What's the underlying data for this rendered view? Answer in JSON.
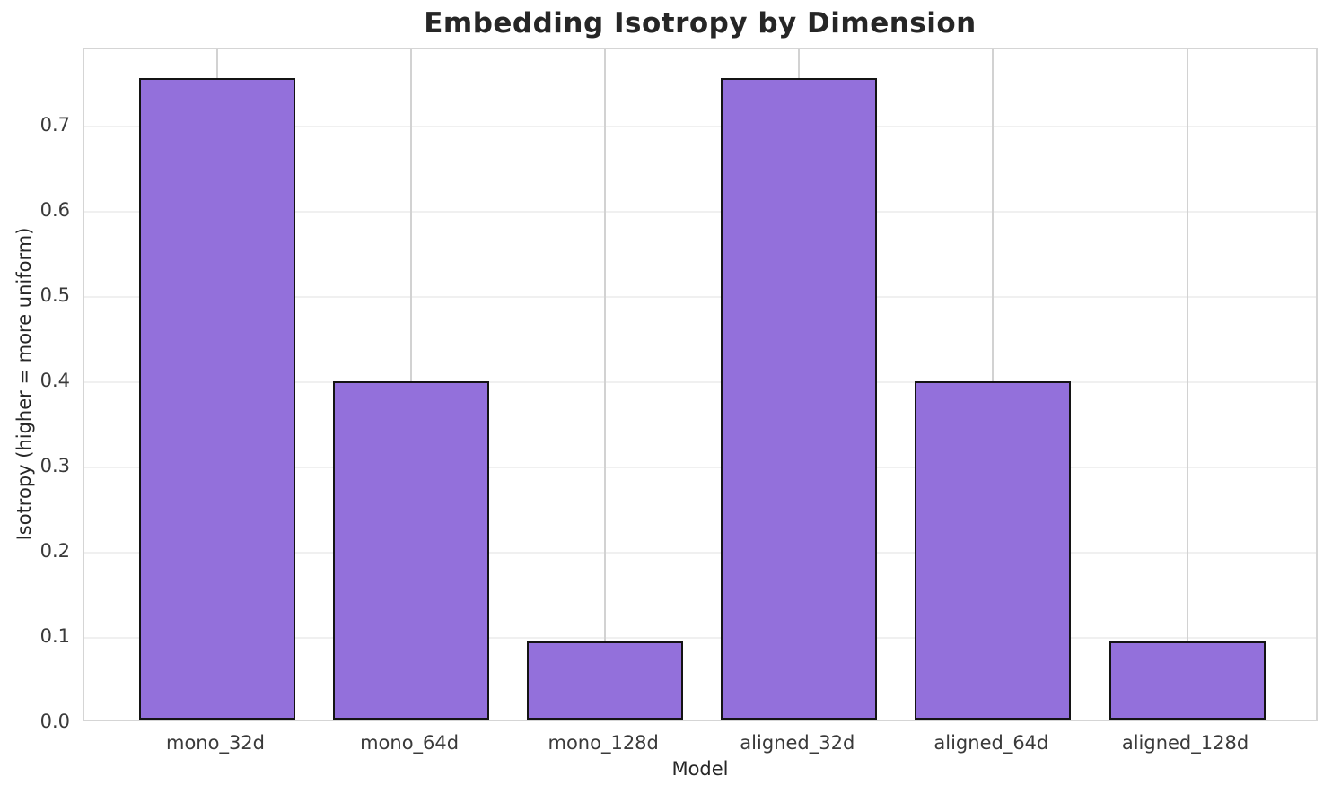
{
  "chart_data": {
    "type": "bar",
    "title": "Embedding Isotropy by Dimension",
    "xlabel": "Model",
    "ylabel": "Isotropy (higher = more uniform)",
    "categories": [
      "mono_32d",
      "mono_64d",
      "mono_128d",
      "aligned_32d",
      "aligned_64d",
      "aligned_128d"
    ],
    "values": [
      0.752,
      0.397,
      0.092,
      0.752,
      0.397,
      0.092
    ],
    "ylim": [
      0,
      0.79
    ],
    "yticks": [
      "0.0",
      "0.1",
      "0.2",
      "0.3",
      "0.4",
      "0.5",
      "0.6",
      "0.7"
    ],
    "grid": true,
    "legend": "none",
    "bar_color": "#9370DB",
    "bar_edge_color": "#141414"
  }
}
